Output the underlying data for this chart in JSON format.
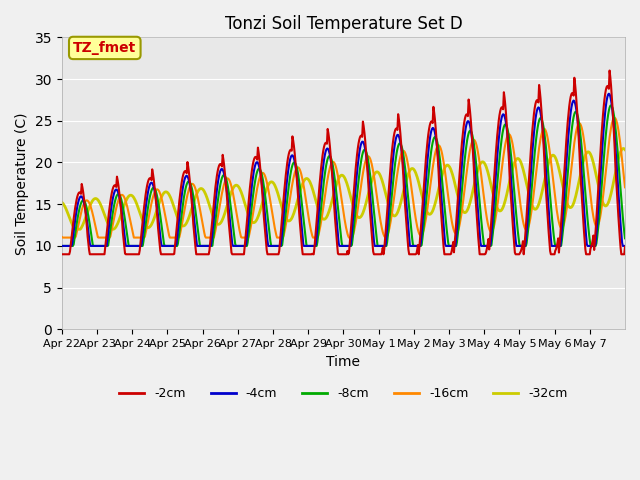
{
  "title": "Tonzi Soil Temperature Set D",
  "xlabel": "Time",
  "ylabel": "Soil Temperature (C)",
  "ylim": [
    0,
    35
  ],
  "yticks": [
    0,
    5,
    10,
    15,
    20,
    25,
    30,
    35
  ],
  "x_labels": [
    "Apr 22",
    "Apr 23",
    "Apr 24",
    "Apr 25",
    "Apr 26",
    "Apr 27",
    "Apr 28",
    "Apr 29",
    "Apr 30",
    "May 1",
    "May 2",
    "May 3",
    "May 4",
    "May 5",
    "May 6",
    "May 7"
  ],
  "annotation_text": "TZ_fmet",
  "annotation_color": "#cc0000",
  "annotation_bg": "#ffff99",
  "annotation_border": "#999900",
  "colors": {
    "-2cm": "#cc0000",
    "-4cm": "#0000cc",
    "-8cm": "#00aa00",
    "-16cm": "#ff8800",
    "-32cm": "#cccc00"
  },
  "line_widths": {
    "-2cm": 1.5,
    "-4cm": 1.5,
    "-8cm": 1.5,
    "-16cm": 1.5,
    "-32cm": 2.0
  },
  "fig_bg": "#f0f0f0",
  "plot_bg": "#e8e8e8",
  "grid_color": "#ffffff"
}
